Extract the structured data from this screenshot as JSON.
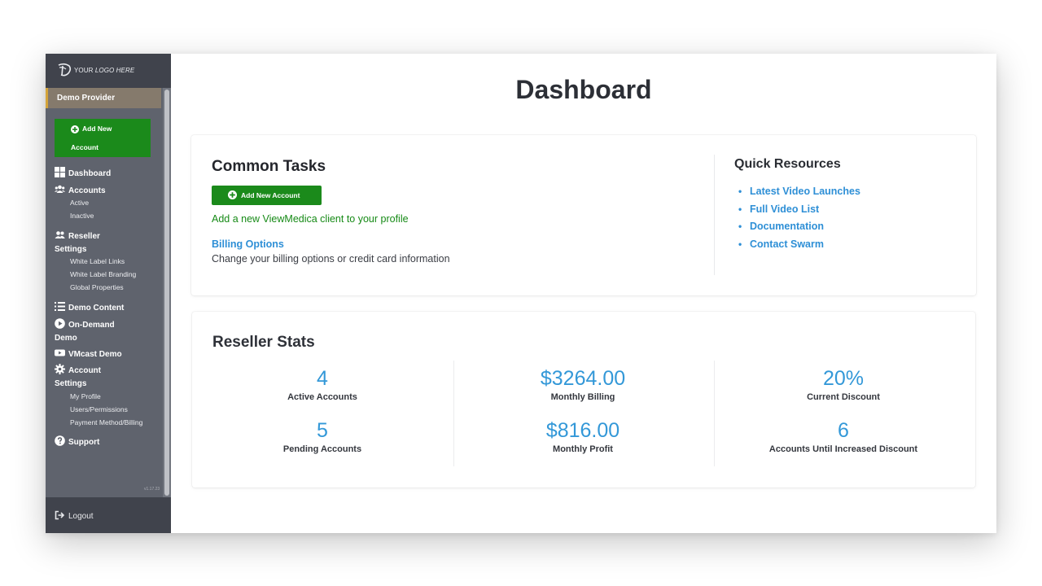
{
  "sidebar": {
    "logo_text_plain": "YOUR ",
    "logo_text_italic": "LOGO HERE",
    "provider": "Demo Provider",
    "add_new_line1": "Add New",
    "add_new_line2": "Account",
    "nav": {
      "dashboard": "Dashboard",
      "accounts": "Accounts",
      "accounts_active": "Active",
      "accounts_inactive": "Inactive",
      "reseller_line1": "Reseller",
      "reseller_line2": "Settings",
      "white_label_links": "White Label Links",
      "white_label_branding": "White Label Branding",
      "global_properties": "Global Properties",
      "demo_content": "Demo Content",
      "on_demand_line1": "On-Demand",
      "on_demand_line2": "Demo",
      "vmcast_demo": "VMcast Demo",
      "account_settings_line1": "Account",
      "account_settings_line2": "Settings",
      "my_profile": "My Profile",
      "users_permissions": "Users/Permissions",
      "payment_method": "Payment Method/Billing",
      "support": "Support"
    },
    "version": "v1.17.23",
    "logout": "Logout"
  },
  "main": {
    "title": "Dashboard",
    "common_tasks": {
      "title": "Common Tasks",
      "add_button": "Add New Account",
      "add_description": "Add a new ViewMedica client to your profile",
      "billing_link": "Billing Options",
      "billing_description": "Change your billing options or credit card information"
    },
    "quick_resources": {
      "title": "Quick Resources",
      "links": [
        "Latest Video Launches",
        "Full Video List",
        "Documentation",
        "Contact Swarm"
      ]
    },
    "reseller_stats": {
      "title": "Reseller Stats",
      "stats": [
        {
          "value": "4",
          "label": "Active Accounts"
        },
        {
          "value": "5",
          "label": "Pending Accounts"
        },
        {
          "value": "$3264.00",
          "label": "Monthly Billing"
        },
        {
          "value": "$816.00",
          "label": "Monthly Profit"
        },
        {
          "value": "20%",
          "label": "Current Discount"
        },
        {
          "value": "6",
          "label": "Accounts Until Increased Discount"
        }
      ]
    }
  },
  "colors": {
    "sidebar_bg": "#5f636d",
    "sidebar_dark": "#40434c",
    "provider_bg": "#857a6c",
    "accent_gold": "#d4a43a",
    "green": "#1b8a1b",
    "link_blue": "#2e8fd6",
    "stat_blue": "#3398d8"
  },
  "icons": {
    "logo": "logo-swirl-icon",
    "add": "plus-circle-icon",
    "dashboard": "grid-icon",
    "accounts": "users-icon",
    "reseller": "user-group-icon",
    "demo_content": "list-icon",
    "on_demand": "play-circle-icon",
    "vmcast": "video-icon",
    "account_settings": "gear-icon",
    "support": "question-circle-icon",
    "logout": "sign-out-icon"
  }
}
